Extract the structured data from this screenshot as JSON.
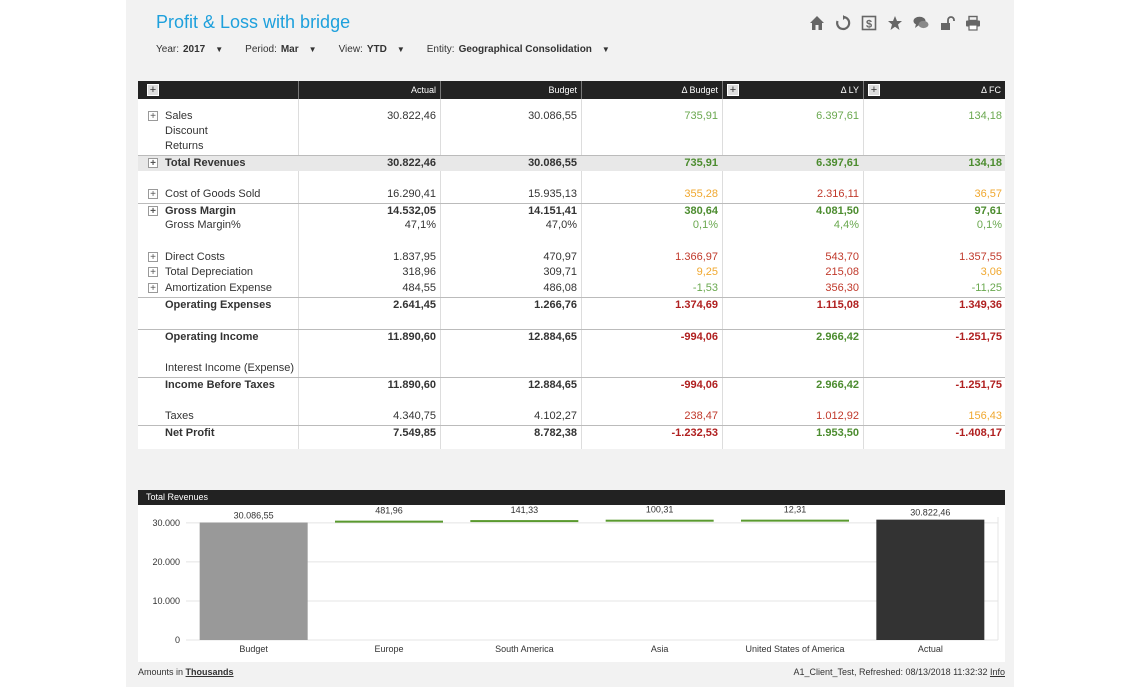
{
  "title": "Profit & Loss with bridge",
  "filters": [
    {
      "label": "Year:",
      "value": "2017"
    },
    {
      "label": "Period:",
      "value": "Mar"
    },
    {
      "label": "View:",
      "value": "YTD"
    },
    {
      "label": "Entity:",
      "value": "Geographical Consolidation"
    }
  ],
  "toolbar_icons": [
    "home-icon",
    "refresh-icon",
    "dollar-icon",
    "star-icon",
    "comments-icon",
    "unlock-icon",
    "print-icon"
  ],
  "columns": [
    "Actual",
    "Budget",
    "Δ Budget",
    "Δ LY",
    "Δ FC"
  ],
  "colors": {
    "positive": "#6aa84f",
    "negative": "#c0392b",
    "warning": "#f0a830",
    "accent": "#1ea0dc"
  },
  "rows": [
    {
      "label": "Sales",
      "plus": true,
      "bold": false,
      "shade": false,
      "line": false,
      "vals": [
        "30.822,46",
        "30.086,55",
        "735,91",
        "6.397,61",
        "134,18"
      ],
      "cls": [
        "",
        "",
        "g",
        "g",
        "g"
      ]
    },
    {
      "label": "Discount",
      "plus": false,
      "bold": false,
      "shade": false,
      "line": false,
      "vals": [
        "",
        "",
        "",
        "",
        ""
      ],
      "cls": [
        "",
        "",
        "",
        "",
        ""
      ]
    },
    {
      "label": "Returns",
      "plus": false,
      "bold": false,
      "shade": false,
      "line": false,
      "vals": [
        "",
        "",
        "",
        "",
        ""
      ],
      "cls": [
        "",
        "",
        "",
        "",
        ""
      ]
    },
    {
      "label": "Total Revenues",
      "plus": true,
      "bold": true,
      "shade": true,
      "line": true,
      "vals": [
        "30.822,46",
        "30.086,55",
        "735,91",
        "6.397,61",
        "134,18"
      ],
      "cls": [
        "",
        "",
        "g",
        "g",
        "g"
      ]
    },
    {
      "label": "",
      "plus": false,
      "bold": false,
      "shade": false,
      "line": false,
      "vals": [
        "",
        "",
        "",
        "",
        ""
      ],
      "cls": [
        "",
        "",
        "",
        "",
        ""
      ]
    },
    {
      "label": "Cost of Goods Sold",
      "plus": true,
      "bold": false,
      "shade": false,
      "line": false,
      "vals": [
        "16.290,41",
        "15.935,13",
        "355,28",
        "2.316,11",
        "36,57"
      ],
      "cls": [
        "",
        "",
        "o",
        "r",
        "o"
      ]
    },
    {
      "label": "Gross Margin",
      "plus": true,
      "bold": true,
      "shade": false,
      "line": true,
      "vals": [
        "14.532,05",
        "14.151,41",
        "380,64",
        "4.081,50",
        "97,61"
      ],
      "cls": [
        "",
        "",
        "g",
        "g",
        "g"
      ]
    },
    {
      "label": "Gross Margin%",
      "plus": false,
      "bold": false,
      "shade": false,
      "line": false,
      "vals": [
        "47,1%",
        "47,0%",
        "0,1%",
        "4,4%",
        "0,1%"
      ],
      "cls": [
        "",
        "",
        "g",
        "g",
        "g"
      ]
    },
    {
      "label": "",
      "plus": false,
      "bold": false,
      "shade": false,
      "line": false,
      "vals": [
        "",
        "",
        "",
        "",
        ""
      ],
      "cls": [
        "",
        "",
        "",
        "",
        ""
      ]
    },
    {
      "label": "Direct Costs",
      "plus": true,
      "bold": false,
      "shade": false,
      "line": false,
      "vals": [
        "1.837,95",
        "470,97",
        "1.366,97",
        "543,70",
        "1.357,55"
      ],
      "cls": [
        "",
        "",
        "r",
        "r",
        "r"
      ]
    },
    {
      "label": "Total Depreciation",
      "plus": true,
      "bold": false,
      "shade": false,
      "line": false,
      "vals": [
        "318,96",
        "309,71",
        "9,25",
        "215,08",
        "3,06"
      ],
      "cls": [
        "",
        "",
        "o",
        "r",
        "o"
      ]
    },
    {
      "label": "Amortization Expense",
      "plus": true,
      "bold": false,
      "shade": false,
      "line": false,
      "vals": [
        "484,55",
        "486,08",
        "-1,53",
        "356,30",
        "-11,25"
      ],
      "cls": [
        "",
        "",
        "g",
        "r",
        "g"
      ]
    },
    {
      "label": "Operating Expenses",
      "plus": false,
      "bold": true,
      "shade": false,
      "line": true,
      "vals": [
        "2.641,45",
        "1.266,76",
        "1.374,69",
        "1.115,08",
        "1.349,36"
      ],
      "cls": [
        "",
        "",
        "r",
        "r",
        "r"
      ]
    },
    {
      "label": "",
      "plus": false,
      "bold": false,
      "shade": false,
      "line": false,
      "vals": [
        "",
        "",
        "",
        "",
        ""
      ],
      "cls": [
        "",
        "",
        "",
        "",
        ""
      ]
    },
    {
      "label": "Operating Income",
      "plus": false,
      "bold": true,
      "shade": false,
      "line": true,
      "vals": [
        "11.890,60",
        "12.884,65",
        "-994,06",
        "2.966,42",
        "-1.251,75"
      ],
      "cls": [
        "",
        "",
        "r",
        "g",
        "r"
      ]
    },
    {
      "label": "",
      "plus": false,
      "bold": false,
      "shade": false,
      "line": false,
      "vals": [
        "",
        "",
        "",
        "",
        ""
      ],
      "cls": [
        "",
        "",
        "",
        "",
        ""
      ]
    },
    {
      "label": "Interest Income (Expense)",
      "plus": false,
      "bold": false,
      "shade": false,
      "line": false,
      "vals": [
        "",
        "",
        "",
        "",
        ""
      ],
      "cls": [
        "",
        "",
        "",
        "",
        ""
      ]
    },
    {
      "label": "Income Before Taxes",
      "plus": false,
      "bold": true,
      "shade": false,
      "line": true,
      "vals": [
        "11.890,60",
        "12.884,65",
        "-994,06",
        "2.966,42",
        "-1.251,75"
      ],
      "cls": [
        "",
        "",
        "r",
        "g",
        "r"
      ]
    },
    {
      "label": "",
      "plus": false,
      "bold": false,
      "shade": false,
      "line": false,
      "vals": [
        "",
        "",
        "",
        "",
        ""
      ],
      "cls": [
        "",
        "",
        "",
        "",
        ""
      ]
    },
    {
      "label": "Taxes",
      "plus": false,
      "bold": false,
      "shade": false,
      "line": false,
      "vals": [
        "4.340,75",
        "4.102,27",
        "238,47",
        "1.012,92",
        "156,43"
      ],
      "cls": [
        "",
        "",
        "r",
        "r",
        "o"
      ]
    },
    {
      "label": "Net Profit",
      "plus": false,
      "bold": true,
      "shade": false,
      "line": true,
      "vals": [
        "7.549,85",
        "8.782,38",
        "-1.232,53",
        "1.953,50",
        "-1.408,17"
      ],
      "cls": [
        "",
        "",
        "r",
        "g",
        "r"
      ]
    }
  ],
  "chart_data": {
    "type": "bar",
    "title": "Total Revenues",
    "subtype": "waterfall",
    "categories": [
      "Budget",
      "Europe",
      "South America",
      "Asia",
      "United States of America",
      "Actual"
    ],
    "values": [
      30086.55,
      481.96,
      141.33,
      100.31,
      12.31,
      30822.46
    ],
    "value_labels": [
      "30.086,55",
      "481,96",
      "141,33",
      "100,31",
      "12,31",
      "30.822,46"
    ],
    "yticks": [
      "0",
      "10.000",
      "20.000",
      "30.000"
    ],
    "ylim": [
      0,
      31500
    ],
    "colors": {
      "start": "#999999",
      "delta": "#5a9a2f",
      "end": "#333333"
    }
  },
  "footer": {
    "amounts_prefix": "Amounts in",
    "amounts_unit": "Thousands",
    "refreshed": "A1_Client_Test, Refreshed: 08/13/2018 11:32:32",
    "info": "Info"
  }
}
